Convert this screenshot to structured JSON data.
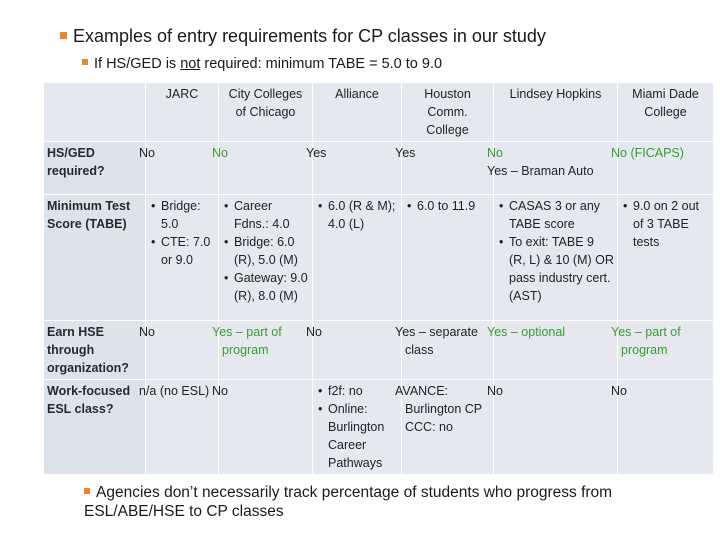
{
  "heading": "Examples of entry requirements for CP classes in our study",
  "subheading": {
    "prefix": "If HS/GED is ",
    "underlined": "not",
    "suffix": " required: minimum TABE = 5.0 to 9.0"
  },
  "columns": [
    "JARC",
    "City Colleges of Chicago",
    "Alliance",
    "Houston Comm. College",
    "Lindsey Hopkins",
    "Miami Dade College"
  ],
  "rows": {
    "hsged": {
      "label": "HS/GED required?",
      "jarc": "No",
      "ccc": "No",
      "alliance": "Yes",
      "houston": "Yes",
      "lindsey_1": "No",
      "lindsey_2": "Yes – Braman Auto",
      "miami": "No (FICAPS)"
    },
    "tabe": {
      "label": "Minimum Test Score (TABE)",
      "jarc": [
        "Bridge: 5.0",
        "CTE: 7.0 or 9.0"
      ],
      "ccc": [
        "Career Fdns.: 4.0",
        "Bridge: 6.0 (R), 5.0 (M)",
        "Gateway: 9.0 (R), 8.0 (M)"
      ],
      "alliance": [
        "6.0 (R & M); 4.0 (L)"
      ],
      "houston": [
        "6.0 to 11.9"
      ],
      "lindsey": [
        "CASAS 3 or any TABE score",
        "To exit: TABE 9 (R, L) & 10 (M) OR pass industry cert. (AST)"
      ],
      "miami": [
        "9.0 on 2 out of 3 TABE tests"
      ]
    },
    "hse": {
      "label": "Earn HSE through organization?",
      "jarc": "No",
      "ccc": "Yes – part of program",
      "alliance": "No",
      "houston": "Yes – separate class",
      "lindsey": "Yes – optional",
      "miami": "Yes – part of program"
    },
    "esl": {
      "label": "Work-focused ESL class?",
      "jarc": "n/a (no ESL)",
      "ccc": "No",
      "alliance": [
        "f2f: no",
        "Online: Burlington Career Pathways"
      ],
      "houston": "AVANCE: Burlington CP CCC: no",
      "lindsey": "No",
      "miami": "No"
    }
  },
  "footer_note": "Agencies don’t necessarily track percentage of students who progress from ESL/ABE/HSE to CP classes",
  "colors": {
    "bullet": "#e8862a",
    "green_text": "#3a9a2f",
    "cell_bg": "#e5e9ef"
  }
}
